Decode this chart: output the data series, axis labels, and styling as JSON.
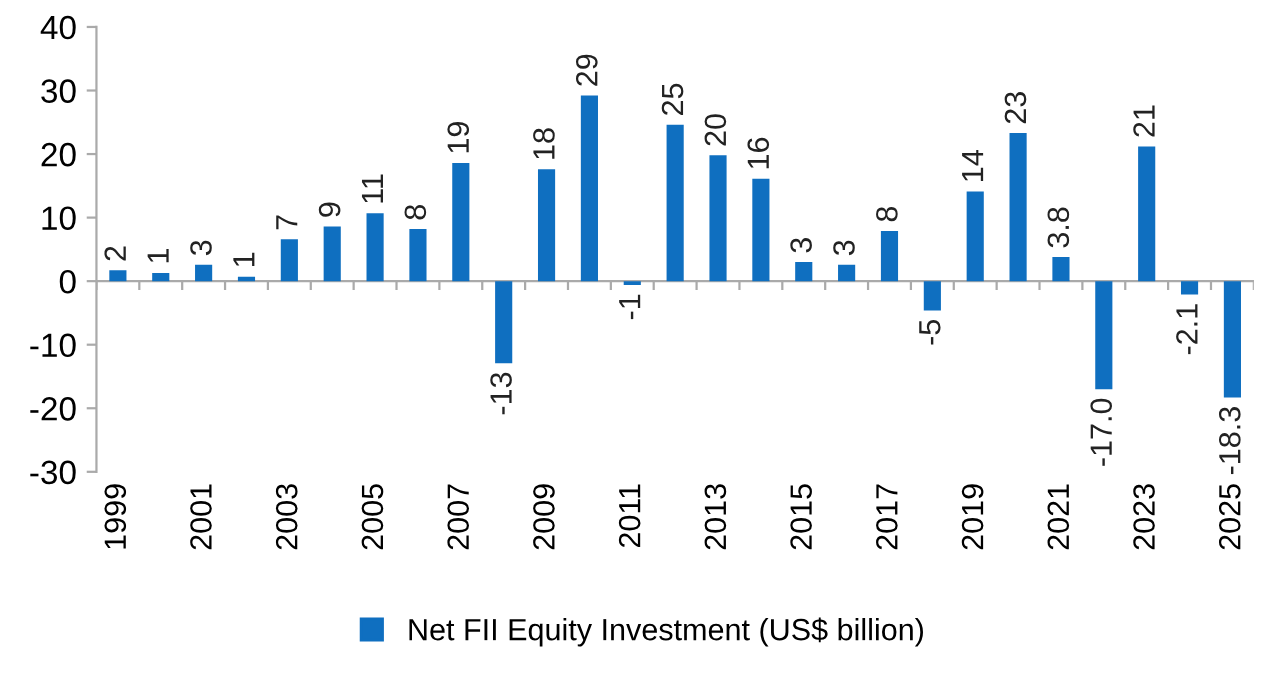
{
  "chart_data": {
    "type": "bar",
    "categories": [
      "1999",
      null,
      "2001",
      null,
      "2003",
      null,
      "2005",
      null,
      "2007",
      null,
      "2009",
      null,
      "2011",
      null,
      "2013",
      null,
      "2015",
      null,
      "2017",
      null,
      "2019",
      null,
      "2021",
      null,
      "2023",
      null,
      "2025"
    ],
    "series": [
      {
        "name": "Net FII Equity Investment (US$ billion)",
        "color": "#0f6fc0",
        "values": [
          1.7,
          1.3,
          2.6,
          0.7,
          6.6,
          8.6,
          10.7,
          8.2,
          18.6,
          -12.9,
          17.6,
          29.2,
          -0.6,
          24.6,
          19.8,
          16.1,
          3.0,
          2.6,
          7.9,
          -4.6,
          14.1,
          23.3,
          3.8,
          -17.0,
          21.2,
          -2.1,
          -18.3
        ],
        "value_labels": [
          "2",
          "1",
          "3",
          "1",
          "7",
          "9",
          "11",
          "8",
          "19",
          "-13",
          "18",
          "29",
          "-1",
          "25",
          "20",
          "16",
          "3",
          "3",
          "8",
          "-5",
          "14",
          "23",
          "3.8",
          "-17.0",
          "21",
          "-2.1",
          "-18.3"
        ]
      }
    ],
    "ylim": [
      -30,
      40
    ],
    "yticks": [
      -30,
      -20,
      -10,
      0,
      10,
      20,
      30,
      40
    ],
    "legend": "bottom"
  }
}
